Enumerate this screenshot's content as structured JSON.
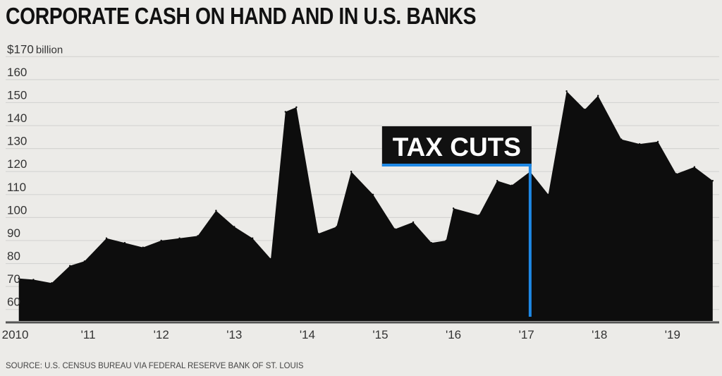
{
  "title": "CORPORATE CASH ON HAND AND IN U.S. BANKS",
  "source": "SOURCE: U.S. CENSUS BUREAU VIA FEDERAL RESERVE BANK OF ST. LOUIS",
  "colors": {
    "background": "#ecebe8",
    "area": "#0d0d0d",
    "grid": "#d4d4d2",
    "annotation_line": "#1e88e5",
    "annotation_box": "#111111"
  },
  "chart_data": {
    "type": "area",
    "y_unit_label": "billion",
    "ylim": [
      55,
      175
    ],
    "xlim": [
      2009.85,
      2019.6
    ],
    "grid": true,
    "y_ticks": [
      {
        "value": 170,
        "label": "$170"
      },
      {
        "value": 160,
        "label": "160"
      },
      {
        "value": 150,
        "label": "150"
      },
      {
        "value": 140,
        "label": "140"
      },
      {
        "value": 130,
        "label": "130"
      },
      {
        "value": 120,
        "label": "120"
      },
      {
        "value": 110,
        "label": "110"
      },
      {
        "value": 100,
        "label": "100"
      },
      {
        "value": 90,
        "label": "90"
      },
      {
        "value": 80,
        "label": "80"
      },
      {
        "value": 70,
        "label": "70"
      },
      {
        "value": 60,
        "label": "60"
      }
    ],
    "x_ticks": [
      {
        "value": 2010,
        "label": "2010"
      },
      {
        "value": 2011,
        "label": "'11"
      },
      {
        "value": 2012,
        "label": "'12"
      },
      {
        "value": 2013,
        "label": "'13"
      },
      {
        "value": 2014,
        "label": "'14"
      },
      {
        "value": 2015,
        "label": "'15"
      },
      {
        "value": 2016,
        "label": "'16"
      },
      {
        "value": 2017,
        "label": "'17"
      },
      {
        "value": 2018,
        "label": "'18"
      },
      {
        "value": 2019,
        "label": "'19"
      }
    ],
    "series": [
      {
        "values": [
          {
            "x": 2010.05,
            "y": 73.5
          },
          {
            "x": 2010.25,
            "y": 73
          },
          {
            "x": 2010.5,
            "y": 71.5
          },
          {
            "x": 2010.75,
            "y": 79
          },
          {
            "x": 2010.95,
            "y": 81
          },
          {
            "x": 2011.25,
            "y": 91
          },
          {
            "x": 2011.5,
            "y": 89
          },
          {
            "x": 2011.75,
            "y": 87
          },
          {
            "x": 2012.0,
            "y": 90
          },
          {
            "x": 2012.25,
            "y": 91
          },
          {
            "x": 2012.5,
            "y": 92
          },
          {
            "x": 2012.75,
            "y": 103
          },
          {
            "x": 2013.0,
            "y": 96
          },
          {
            "x": 2013.25,
            "y": 91
          },
          {
            "x": 2013.5,
            "y": 82
          },
          {
            "x": 2013.7,
            "y": 146
          },
          {
            "x": 2013.85,
            "y": 148
          },
          {
            "x": 2014.15,
            "y": 93
          },
          {
            "x": 2014.4,
            "y": 96
          },
          {
            "x": 2014.6,
            "y": 120
          },
          {
            "x": 2014.9,
            "y": 110
          },
          {
            "x": 2015.2,
            "y": 95
          },
          {
            "x": 2015.45,
            "y": 98
          },
          {
            "x": 2015.7,
            "y": 89
          },
          {
            "x": 2015.9,
            "y": 90
          },
          {
            "x": 2016.0,
            "y": 104
          },
          {
            "x": 2016.35,
            "y": 101
          },
          {
            "x": 2016.6,
            "y": 116
          },
          {
            "x": 2016.8,
            "y": 114
          },
          {
            "x": 2017.05,
            "y": 120
          },
          {
            "x": 2017.3,
            "y": 110
          },
          {
            "x": 2017.55,
            "y": 155
          },
          {
            "x": 2017.8,
            "y": 147
          },
          {
            "x": 2017.98,
            "y": 153
          },
          {
            "x": 2018.3,
            "y": 134
          },
          {
            "x": 2018.55,
            "y": 132
          },
          {
            "x": 2018.8,
            "y": 133
          },
          {
            "x": 2019.05,
            "y": 119
          },
          {
            "x": 2019.3,
            "y": 122
          },
          {
            "x": 2019.55,
            "y": 116
          }
        ]
      }
    ],
    "annotations": [
      {
        "text": "TAX CUTS",
        "x": 2017.05
      }
    ]
  }
}
